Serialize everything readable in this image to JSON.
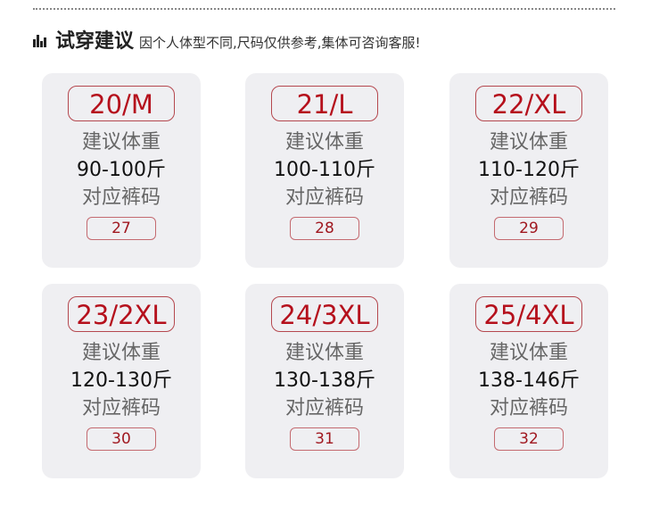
{
  "header": {
    "icon": "bar-chart-icon",
    "title": "试穿建议",
    "subtitle": "因个人体型不同,尺码仅供参考,集体可咨询客服!"
  },
  "cards": [
    {
      "size": "20/M",
      "weight_label": "建议体重",
      "weight": "90-100斤",
      "pants_label": "对应裤码",
      "pants": "27"
    },
    {
      "size": "21/L",
      "weight_label": "建议体重",
      "weight": "100-110斤",
      "pants_label": "对应裤码",
      "pants": "28"
    },
    {
      "size": "22/XL",
      "weight_label": "建议体重",
      "weight": "110-120斤",
      "pants_label": "对应裤码",
      "pants": "29"
    },
    {
      "size": "23/2XL",
      "weight_label": "建议体重",
      "weight": "120-130斤",
      "pants_label": "对应裤码",
      "pants": "30"
    },
    {
      "size": "24/3XL",
      "weight_label": "建议体重",
      "weight": "130-138斤",
      "pants_label": "对应裤码",
      "pants": "31"
    },
    {
      "size": "25/4XL",
      "weight_label": "建议体重",
      "weight": "138-146斤",
      "pants_label": "对应裤码",
      "pants": "32"
    }
  ],
  "colors": {
    "accent": "#b5101c",
    "card_bg": "#efeff2"
  }
}
